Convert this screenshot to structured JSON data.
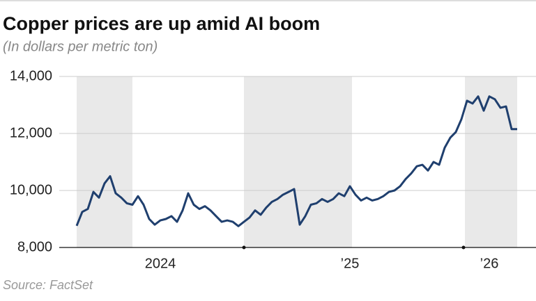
{
  "chart_data": {
    "type": "line",
    "title": "Copper prices are up amid AI boom",
    "subtitle": "(In dollars per metric ton)",
    "source": "Source: FactSet",
    "categories": [
      null,
      null,
      null,
      null,
      null,
      null,
      null,
      null,
      null,
      null,
      null,
      null,
      null,
      null,
      null,
      "2024",
      null,
      null,
      null,
      null,
      null,
      null,
      null,
      null,
      null,
      null,
      null,
      null,
      null,
      null,
      null,
      null,
      null,
      null,
      null,
      null,
      null,
      null,
      null,
      null,
      null,
      null,
      null,
      null,
      null,
      null,
      null,
      null,
      null,
      "’25",
      null,
      null,
      null,
      null,
      null,
      null,
      null,
      null,
      null,
      null,
      null,
      null,
      null,
      null,
      null,
      null,
      null,
      null,
      null,
      null,
      null,
      null,
      null,
      null,
      "’26",
      null,
      null,
      null,
      null,
      null
    ],
    "series": [
      {
        "name": "Copper",
        "color": "#1f3f6e",
        "values": [
          8760,
          9250,
          9350,
          9950,
          9750,
          10250,
          10500,
          9900,
          9750,
          9550,
          9500,
          9800,
          9500,
          9000,
          8800,
          8950,
          9000,
          9100,
          8900,
          9300,
          9900,
          9500,
          9350,
          9450,
          9300,
          9100,
          8900,
          8950,
          8900,
          8750,
          8900,
          9050,
          9300,
          9150,
          9400,
          9600,
          9700,
          9850,
          9950,
          10050,
          8800,
          9100,
          9500,
          9550,
          9700,
          9600,
          9700,
          9900,
          9800,
          10150,
          9850,
          9650,
          9750,
          9650,
          9700,
          9800,
          9950,
          10000,
          10150,
          10400,
          10600,
          10850,
          10900,
          10700,
          11000,
          10900,
          11500,
          11850,
          12050,
          12500,
          13150,
          13050,
          13300,
          12800,
          13300,
          13200,
          12900,
          12950,
          12150,
          12150
        ]
      }
    ],
    "ylim": [
      8000,
      14000
    ],
    "yticks": [
      {
        "value": 8000,
        "label": "8,000"
      },
      {
        "value": 10000,
        "label": "10,000"
      },
      {
        "value": 12000,
        "label": "12,000"
      },
      {
        "value": 14000,
        "label": "14,000"
      }
    ],
    "grid": true
  }
}
